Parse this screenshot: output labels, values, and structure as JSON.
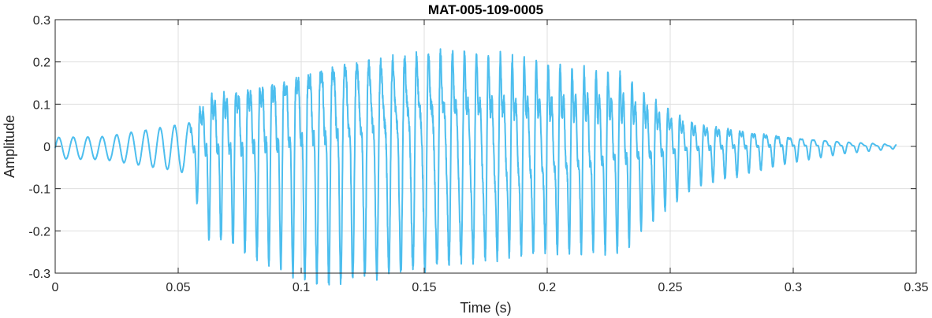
{
  "chart_data": {
    "type": "line",
    "title": "MAT-005-109-0005",
    "xlabel": "Time (s)",
    "ylabel": "Amplitude",
    "xlim": [
      0,
      0.35
    ],
    "ylim": [
      -0.3,
      0.3
    ],
    "xticks": [
      0,
      0.05,
      0.1,
      0.15,
      0.2,
      0.25,
      0.3,
      0.35
    ],
    "xtick_labels": [
      "0",
      "0.05",
      "0.1",
      "0.15",
      "0.2",
      "0.25",
      "0.3",
      "0.35"
    ],
    "yticks": [
      0.3,
      0.2,
      0.1,
      0,
      -0.1,
      -0.2,
      -0.3
    ],
    "ytick_labels": [
      "0.3",
      "0.2",
      "0.1",
      "0",
      "-0.1",
      "-0.2",
      "-0.3"
    ],
    "grid": true,
    "series": [
      {
        "color": "#4dbeee",
        "x_range": [
          0,
          0.342
        ],
        "envelope": {
          "t": [
            0,
            0.02,
            0.045,
            0.055,
            0.062,
            0.07,
            0.09,
            0.11,
            0.13,
            0.15,
            0.17,
            0.19,
            0.21,
            0.23,
            0.245,
            0.26,
            0.28,
            0.3,
            0.32,
            0.342
          ],
          "amplitude": [
            0.025,
            0.027,
            0.05,
            0.06,
            0.16,
            0.17,
            0.22,
            0.27,
            0.27,
            0.27,
            0.25,
            0.22,
            0.2,
            0.19,
            0.12,
            0.07,
            0.05,
            0.03,
            0.015,
            0.005
          ]
        }
      }
    ]
  }
}
